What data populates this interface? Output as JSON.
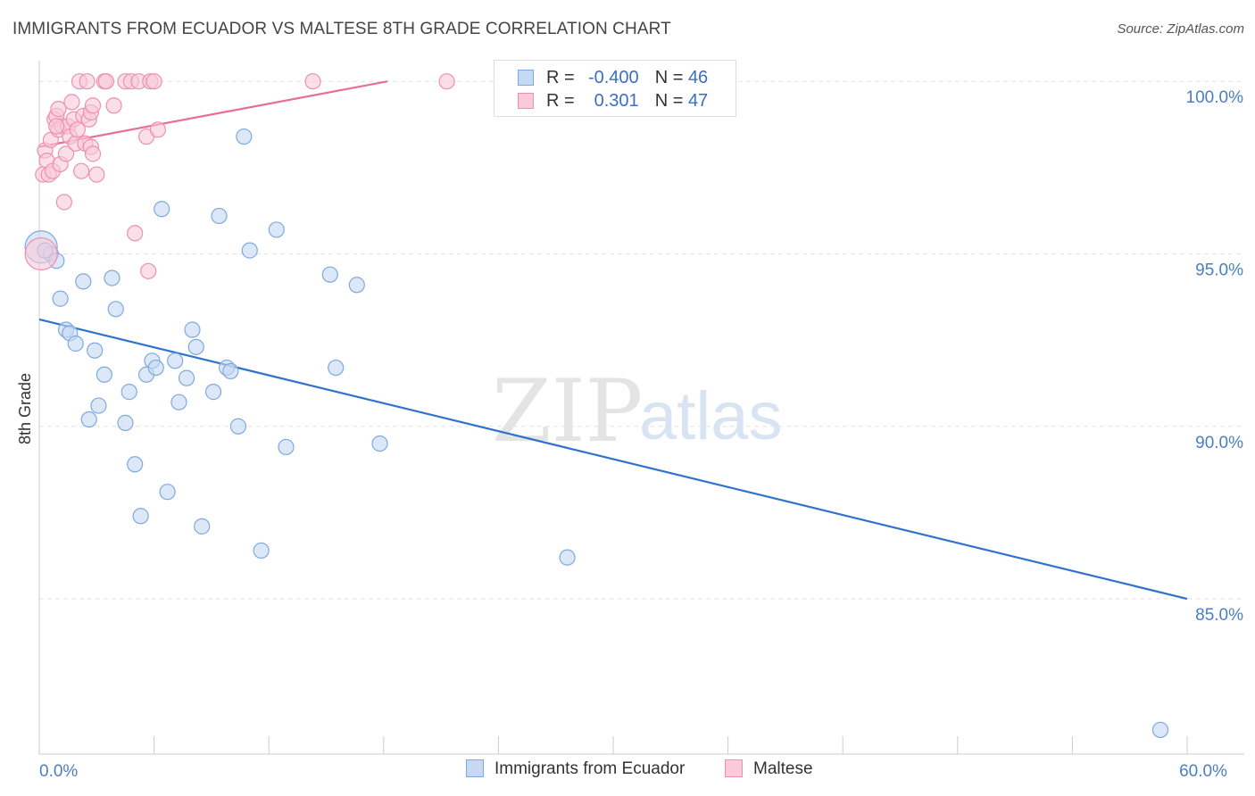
{
  "title": "IMMIGRANTS FROM ECUADOR VS MALTESE 8TH GRADE CORRELATION CHART",
  "source": "Source: ZipAtlas.com",
  "watermark": {
    "zip": "ZIP",
    "atlas": "atlas"
  },
  "colors": {
    "blue_fill": "#c5d9f3",
    "blue_stroke": "#7ea9e0",
    "blue_line": "#2f73cc",
    "pink_fill": "#f9cad9",
    "pink_stroke": "#ee90ae",
    "pink_line": "#e86d99",
    "grid": "#e2e2e2",
    "tick_text": "#4a7fc1"
  },
  "legend": {
    "rows": [
      {
        "r_label": "R =",
        "r_value": "-0.400",
        "n_label": "N =",
        "n_value": "46"
      },
      {
        "r_label": "R =",
        "r_value": "0.301",
        "n_label": "N =",
        "n_value": "47"
      }
    ]
  },
  "chart_data": {
    "type": "scatter",
    "title": "IMMIGRANTS FROM ECUADOR VS MALTESE 8TH GRADE CORRELATION CHART",
    "xlabel": "",
    "ylabel": "8th Grade",
    "xlim": [
      0,
      60
    ],
    "ylim": [
      80.5,
      100.6
    ],
    "x_tick_labels": [
      {
        "value": 0,
        "label": "0.0%"
      },
      {
        "value": 60,
        "label": "60.0%"
      }
    ],
    "x_minor_ticks": [
      6,
      12,
      18,
      24,
      30,
      36,
      42,
      48,
      54,
      60
    ],
    "y_ticks": [
      {
        "value": 100,
        "label": "100.0%"
      },
      {
        "value": 95,
        "label": "95.0%"
      },
      {
        "value": 90,
        "label": "90.0%"
      },
      {
        "value": 85,
        "label": "85.0%"
      }
    ],
    "series": [
      {
        "name": "Immigrants from Ecuador",
        "color": "blue",
        "trend": {
          "x": [
            0,
            60
          ],
          "y": [
            93.1,
            85.0
          ]
        },
        "points": [
          {
            "x": 0.1,
            "y": 95.2,
            "size": "large"
          },
          {
            "x": 0.6,
            "y": 95.0
          },
          {
            "x": 0.9,
            "y": 94.8
          },
          {
            "x": 1.1,
            "y": 93.7
          },
          {
            "x": 1.4,
            "y": 92.8
          },
          {
            "x": 1.6,
            "y": 92.7
          },
          {
            "x": 1.9,
            "y": 92.4
          },
          {
            "x": 2.3,
            "y": 94.2
          },
          {
            "x": 2.9,
            "y": 92.2
          },
          {
            "x": 3.1,
            "y": 90.6
          },
          {
            "x": 2.6,
            "y": 90.2
          },
          {
            "x": 3.4,
            "y": 91.5
          },
          {
            "x": 3.8,
            "y": 94.3
          },
          {
            "x": 4.0,
            "y": 93.4
          },
          {
            "x": 4.5,
            "y": 90.1
          },
          {
            "x": 4.7,
            "y": 91.0
          },
          {
            "x": 5.0,
            "y": 88.9
          },
          {
            "x": 5.3,
            "y": 87.4
          },
          {
            "x": 5.6,
            "y": 91.5
          },
          {
            "x": 5.9,
            "y": 91.9
          },
          {
            "x": 6.1,
            "y": 91.7
          },
          {
            "x": 6.4,
            "y": 96.3
          },
          {
            "x": 6.7,
            "y": 88.1
          },
          {
            "x": 7.1,
            "y": 91.9
          },
          {
            "x": 7.3,
            "y": 90.7
          },
          {
            "x": 7.7,
            "y": 91.4
          },
          {
            "x": 8.0,
            "y": 92.8
          },
          {
            "x": 8.2,
            "y": 92.3
          },
          {
            "x": 8.5,
            "y": 87.1
          },
          {
            "x": 9.1,
            "y": 91.0
          },
          {
            "x": 9.4,
            "y": 96.1
          },
          {
            "x": 9.8,
            "y": 91.7
          },
          {
            "x": 10.0,
            "y": 91.6
          },
          {
            "x": 10.4,
            "y": 90.0
          },
          {
            "x": 10.7,
            "y": 98.4
          },
          {
            "x": 11.0,
            "y": 95.1
          },
          {
            "x": 11.6,
            "y": 86.4
          },
          {
            "x": 12.4,
            "y": 95.7
          },
          {
            "x": 12.9,
            "y": 89.4
          },
          {
            "x": 15.2,
            "y": 94.4
          },
          {
            "x": 15.5,
            "y": 91.7
          },
          {
            "x": 16.6,
            "y": 94.1
          },
          {
            "x": 17.8,
            "y": 89.5
          },
          {
            "x": 27.6,
            "y": 86.2
          },
          {
            "x": 58.6,
            "y": 81.2
          },
          {
            "x": 0.3,
            "y": 95.1
          }
        ]
      },
      {
        "name": "Maltese",
        "color": "pink",
        "trend": {
          "x": [
            0,
            18.2
          ],
          "y": [
            98.1,
            100.0
          ]
        },
        "points": [
          {
            "x": 0.1,
            "y": 95.0,
            "size": "large"
          },
          {
            "x": 0.2,
            "y": 97.3
          },
          {
            "x": 0.3,
            "y": 98.0
          },
          {
            "x": 0.4,
            "y": 97.7
          },
          {
            "x": 0.5,
            "y": 97.3
          },
          {
            "x": 0.6,
            "y": 98.3
          },
          {
            "x": 0.7,
            "y": 97.4
          },
          {
            "x": 0.8,
            "y": 98.9
          },
          {
            "x": 0.9,
            "y": 99.0
          },
          {
            "x": 1.0,
            "y": 98.6
          },
          {
            "x": 1.0,
            "y": 99.2
          },
          {
            "x": 1.1,
            "y": 97.6
          },
          {
            "x": 1.2,
            "y": 98.7
          },
          {
            "x": 1.3,
            "y": 96.5
          },
          {
            "x": 1.4,
            "y": 97.9
          },
          {
            "x": 1.5,
            "y": 98.7
          },
          {
            "x": 1.6,
            "y": 98.4
          },
          {
            "x": 1.7,
            "y": 99.4
          },
          {
            "x": 1.8,
            "y": 98.9
          },
          {
            "x": 1.9,
            "y": 98.2
          },
          {
            "x": 2.0,
            "y": 98.6
          },
          {
            "x": 2.1,
            "y": 100.0
          },
          {
            "x": 2.2,
            "y": 97.4
          },
          {
            "x": 2.3,
            "y": 99.0
          },
          {
            "x": 2.4,
            "y": 98.2
          },
          {
            "x": 2.5,
            "y": 100.0
          },
          {
            "x": 2.6,
            "y": 98.9
          },
          {
            "x": 2.7,
            "y": 99.1
          },
          {
            "x": 2.7,
            "y": 98.1
          },
          {
            "x": 2.8,
            "y": 97.9
          },
          {
            "x": 2.8,
            "y": 99.3
          },
          {
            "x": 3.0,
            "y": 97.3
          },
          {
            "x": 3.4,
            "y": 100.0
          },
          {
            "x": 3.5,
            "y": 100.0
          },
          {
            "x": 3.9,
            "y": 99.3
          },
          {
            "x": 4.5,
            "y": 100.0
          },
          {
            "x": 4.8,
            "y": 100.0
          },
          {
            "x": 5.0,
            "y": 95.6
          },
          {
            "x": 5.2,
            "y": 100.0
          },
          {
            "x": 5.6,
            "y": 98.4
          },
          {
            "x": 5.7,
            "y": 94.5
          },
          {
            "x": 5.8,
            "y": 100.0
          },
          {
            "x": 6.0,
            "y": 100.0
          },
          {
            "x": 6.2,
            "y": 98.6
          },
          {
            "x": 14.3,
            "y": 100.0
          },
          {
            "x": 21.3,
            "y": 100.0
          },
          {
            "x": 0.9,
            "y": 98.7
          }
        ]
      }
    ],
    "legend": [
      "Immigrants from Ecuador",
      "Maltese"
    ],
    "legend_position": "top-center"
  }
}
